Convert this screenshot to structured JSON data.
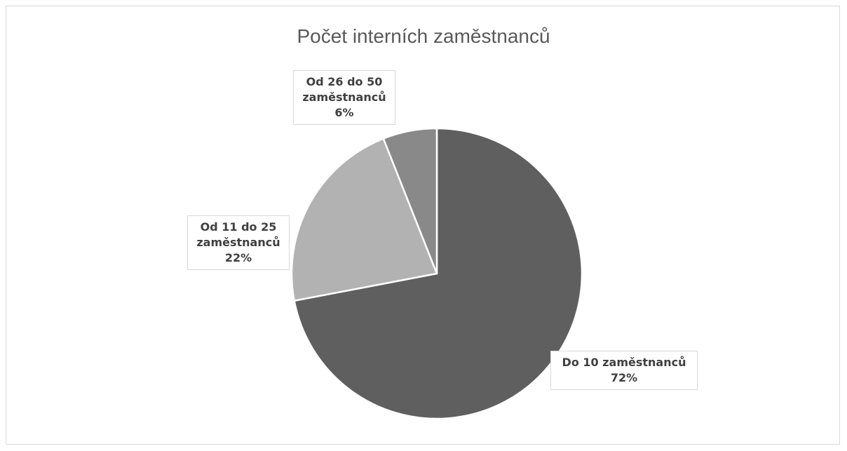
{
  "chart_data": {
    "type": "pie",
    "title": "Počet interních zaměstnanců",
    "categories": [
      "Do 10 zaměstnanců",
      "Od 11 do 25 zaměstnanců",
      "Od 26 do 50 zaměstnanců"
    ],
    "values": [
      72,
      22,
      6
    ],
    "value_labels": [
      "72%",
      "22%",
      "6%"
    ],
    "colors": [
      "#5f5f5f",
      "#b2b2b2",
      "#898989"
    ]
  }
}
